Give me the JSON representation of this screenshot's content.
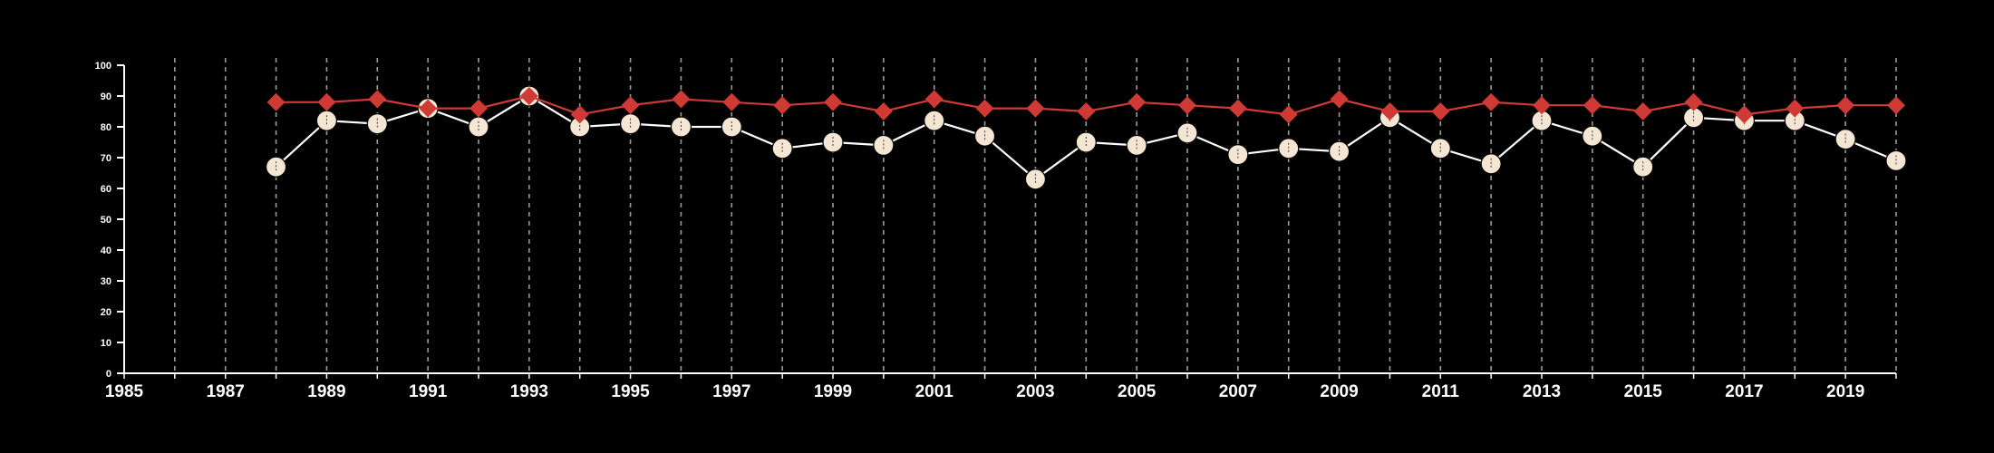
{
  "chart_data": {
    "type": "line",
    "title": "",
    "xlabel": "",
    "ylabel": "",
    "xlim": [
      1985,
      2020
    ],
    "ylim": [
      0,
      100
    ],
    "y_ticks": [
      0,
      10,
      20,
      30,
      40,
      50,
      60,
      70,
      80,
      90,
      100
    ],
    "x_ticks": [
      1985,
      1987,
      1989,
      1991,
      1993,
      1995,
      1997,
      1999,
      2001,
      2003,
      2005,
      2007,
      2009,
      2011,
      2013,
      2015,
      2017,
      2019
    ],
    "vertical_gridlines": "dashed, every year",
    "legend": "none",
    "x": [
      1988,
      1989,
      1990,
      1991,
      1992,
      1993,
      1994,
      1995,
      1996,
      1997,
      1998,
      1999,
      2000,
      2001,
      2002,
      2003,
      2004,
      2005,
      2006,
      2007,
      2008,
      2009,
      2010,
      2011,
      2012,
      2013,
      2014,
      2015,
      2016,
      2017,
      2018,
      2019,
      2020
    ],
    "series": [
      {
        "marker": "diamond",
        "color": "#d03a35",
        "values": [
          88,
          88,
          89,
          86,
          86,
          90,
          84,
          87,
          89,
          88,
          87,
          88,
          85,
          89,
          86,
          86,
          85,
          88,
          87,
          86,
          84,
          89,
          85,
          85,
          88,
          87,
          87,
          85,
          88,
          84,
          86,
          87,
          87
        ]
      },
      {
        "marker": "circle",
        "color": "#ffffff",
        "fill": "#f5e6d3",
        "values": [
          67,
          82,
          81,
          86,
          80,
          90,
          80,
          81,
          80,
          80,
          73,
          75,
          74,
          82,
          77,
          63,
          75,
          74,
          78,
          71,
          73,
          72,
          83,
          73,
          68,
          82,
          77,
          67,
          83,
          82,
          82,
          76,
          69
        ]
      }
    ],
    "colors": {
      "background": "#000000",
      "axis": "#ffffff",
      "grid": "#9a9a9a"
    }
  }
}
